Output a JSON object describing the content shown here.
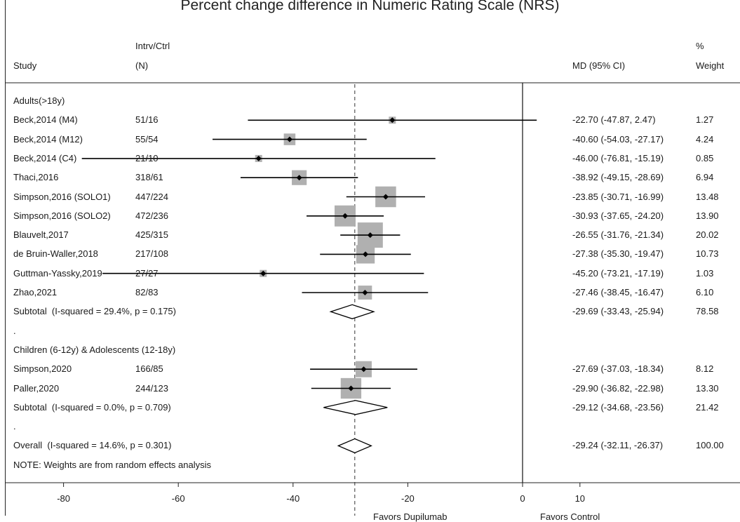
{
  "chart_data": {
    "type": "forest",
    "title": "Percent change difference in Numeric Rating Scale (NRS)",
    "headers": {
      "study": "Study",
      "n_top": "Intrv/Ctrl",
      "n_bottom": "(N)",
      "ci": "MD (95% CI)",
      "weight_top": "%",
      "weight_bottom": "Weight"
    },
    "rows": [
      {
        "kind": "group",
        "label": "Adults(>18y)"
      },
      {
        "kind": "study",
        "label": "Beck,2014 (M4)",
        "n": "51/16",
        "md": -22.7,
        "lo": -47.87,
        "hi": 2.47,
        "ci_text": "-22.70 (-47.87, 2.47)",
        "weight": "1.27"
      },
      {
        "kind": "study",
        "label": "Beck,2014 (M12)",
        "n": "55/54",
        "md": -40.6,
        "lo": -54.03,
        "hi": -27.17,
        "ci_text": "-40.60 (-54.03, -27.17)",
        "weight": "4.24"
      },
      {
        "kind": "study",
        "label": "Beck,2014 (C4)",
        "n": "21/10",
        "md": -46.0,
        "lo": -76.81,
        "hi": -15.19,
        "ci_text": "-46.00 (-76.81, -15.19)",
        "weight": "0.85"
      },
      {
        "kind": "study",
        "label": "Thaci,2016",
        "n": "318/61",
        "md": -38.92,
        "lo": -49.15,
        "hi": -28.69,
        "ci_text": "-38.92 (-49.15, -28.69)",
        "weight": "6.94"
      },
      {
        "kind": "study",
        "label": "Simpson,2016 (SOLO1)",
        "n": "447/224",
        "md": -23.85,
        "lo": -30.71,
        "hi": -16.99,
        "ci_text": "-23.85 (-30.71, -16.99)",
        "weight": "13.48"
      },
      {
        "kind": "study",
        "label": "Simpson,2016 (SOLO2)",
        "n": "472/236",
        "md": -30.93,
        "lo": -37.65,
        "hi": -24.2,
        "ci_text": "-30.93 (-37.65, -24.20)",
        "weight": "13.90"
      },
      {
        "kind": "study",
        "label": "Blauvelt,2017",
        "n": "425/315",
        "md": -26.55,
        "lo": -31.76,
        "hi": -21.34,
        "ci_text": "-26.55 (-31.76, -21.34)",
        "weight": "20.02"
      },
      {
        "kind": "study",
        "label": "de Bruin-Waller,2018",
        "n": "217/108",
        "md": -27.38,
        "lo": -35.3,
        "hi": -19.47,
        "ci_text": "-27.38 (-35.30, -19.47)",
        "weight": "10.73"
      },
      {
        "kind": "study",
        "label": "Guttman-Yassky,2019",
        "n": "27/27",
        "md": -45.2,
        "lo": -73.21,
        "hi": -17.19,
        "ci_text": "-45.20 (-73.21, -17.19)",
        "weight": "1.03"
      },
      {
        "kind": "study",
        "label": "Zhao,2021",
        "n": "82/83",
        "md": -27.46,
        "lo": -38.45,
        "hi": -16.47,
        "ci_text": "-27.46 (-38.45, -16.47)",
        "weight": "6.10"
      },
      {
        "kind": "subtotal",
        "label": "Subtotal  (I-squared = 29.4%, p = 0.175)",
        "md": -29.69,
        "lo": -33.43,
        "hi": -25.94,
        "ci_text": "-29.69 (-33.43, -25.94)",
        "weight": "78.58"
      },
      {
        "kind": "spacer",
        "label": "."
      },
      {
        "kind": "group",
        "label": "Children (6-12y) & Adolescents (12-18y)"
      },
      {
        "kind": "study",
        "label": "Simpson,2020",
        "n": "166/85",
        "md": -27.69,
        "lo": -37.03,
        "hi": -18.34,
        "ci_text": "-27.69 (-37.03, -18.34)",
        "weight": "8.12"
      },
      {
        "kind": "study",
        "label": "Paller,2020",
        "n": "244/123",
        "md": -29.9,
        "lo": -36.82,
        "hi": -22.98,
        "ci_text": "-29.90 (-36.82, -22.98)",
        "weight": "13.30"
      },
      {
        "kind": "subtotal",
        "label": "Subtotal  (I-squared = 0.0%, p = 0.709)",
        "md": -29.12,
        "lo": -34.68,
        "hi": -23.56,
        "ci_text": "-29.12 (-34.68, -23.56)",
        "weight": "21.42"
      },
      {
        "kind": "spacer",
        "label": "."
      },
      {
        "kind": "overall",
        "label": "Overall  (I-squared = 14.6%, p = 0.301)",
        "md": -29.24,
        "lo": -32.11,
        "hi": -26.37,
        "ci_text": "-29.24 (-32.11, -26.37)",
        "weight": "100.00"
      },
      {
        "kind": "note",
        "label": "NOTE: Weights are from random effects analysis"
      }
    ],
    "x_ticks": [
      -80,
      -60,
      -40,
      -20,
      0,
      10
    ],
    "xlim": [
      -80,
      10
    ],
    "null_line": 0,
    "pooled_line": -29.24,
    "axis_labels": {
      "left": "Favors Dupilumab",
      "right": "Favors Control"
    }
  }
}
